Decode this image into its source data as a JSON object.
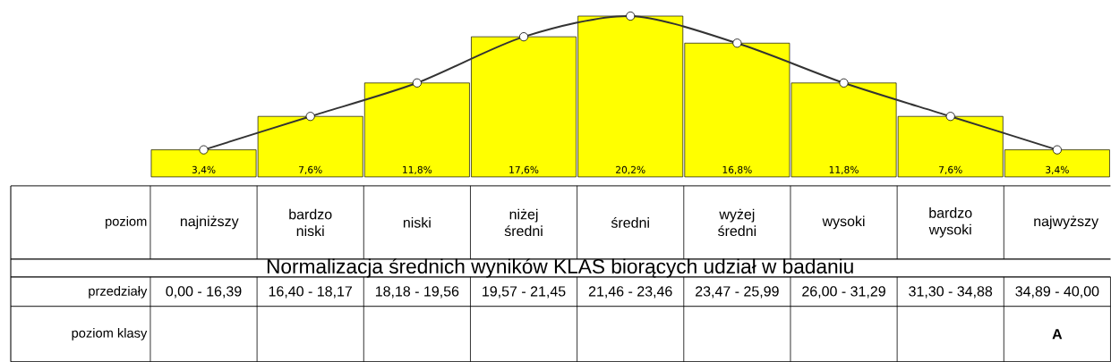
{
  "chart_data": {
    "type": "bar",
    "title": "Normalizacja średnich wyników KLAS biorących udział w badaniu",
    "categories": [
      "najniższy",
      "bardzo niski",
      "niski",
      "niżej średni",
      "średni",
      "wyżej średni",
      "wysoki",
      "bardzo wysoki",
      "najwyższy"
    ],
    "series": [
      {
        "type": "bar",
        "color": "#ffff00",
        "values": [
          3.4,
          7.6,
          11.8,
          17.6,
          20.2,
          16.8,
          11.8,
          7.6,
          3.4
        ],
        "value_labels": [
          "3,4%",
          "7,6%",
          "11,8%",
          "17,6%",
          "20,2%",
          "16,8%",
          "11,8%",
          "7,6%",
          "3,4%"
        ]
      },
      {
        "type": "line",
        "color": "#333333",
        "marker": "circle",
        "values": [
          3.4,
          7.6,
          11.8,
          17.6,
          20.2,
          16.8,
          11.8,
          7.6,
          3.4
        ]
      }
    ],
    "annotations": [
      "poziom",
      "przedziały",
      "0,00 - 16,39",
      "16,40 - 18,17",
      "18,18 - 19,56",
      "19,57 - 21,45",
      "21,46 - 23,46",
      "23,47 - 25,99",
      "26,00 - 31,29",
      "31,30 - 34,88",
      "34,89 - 40,00",
      "poziom klasy",
      "A"
    ]
  }
}
